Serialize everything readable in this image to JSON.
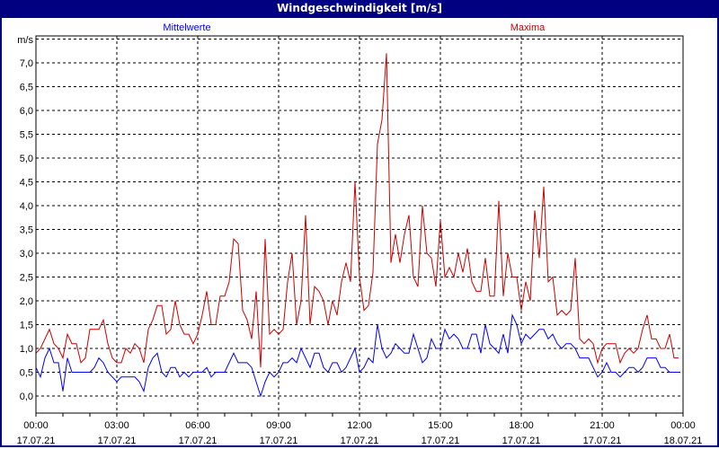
{
  "window": {
    "title": "Windgeschwindigkeit [m/s]"
  },
  "chart_data": {
    "type": "line",
    "title": "Windgeschwindigkeit [m/s]",
    "ylabel": "m/s",
    "ylim": [
      -0.36,
      7.5
    ],
    "xlim": [
      "17.07.21 00:00",
      "18.07.21 00:00"
    ],
    "grid": true,
    "legend_placement": "top",
    "y_ticks": [
      "0,0",
      "0,5",
      "1,0",
      "1,5",
      "2,0",
      "2,5",
      "3,0",
      "3,5",
      "4,0",
      "4,5",
      "5,0",
      "5,5",
      "6,0",
      "6,5",
      "7,0"
    ],
    "x_ticks": [
      {
        "time": "00:00",
        "date": "17.07.21"
      },
      {
        "time": "03:00",
        "date": "17.07.21"
      },
      {
        "time": "06:00",
        "date": "17.07.21"
      },
      {
        "time": "09:00",
        "date": "17.07.21"
      },
      {
        "time": "12:00",
        "date": "17.07.21"
      },
      {
        "time": "15:00",
        "date": "17.07.21"
      },
      {
        "time": "18:00",
        "date": "17.07.21"
      },
      {
        "time": "21:00",
        "date": "17.07.21"
      },
      {
        "time": "00:00",
        "date": "18.07.21"
      }
    ],
    "x": [
      "00:00",
      "00:10",
      "00:20",
      "00:30",
      "00:40",
      "00:50",
      "01:00",
      "01:10",
      "01:20",
      "01:30",
      "01:40",
      "01:50",
      "02:00",
      "02:10",
      "02:20",
      "02:30",
      "02:40",
      "02:50",
      "03:00",
      "03:10",
      "03:20",
      "03:30",
      "03:40",
      "03:50",
      "04:00",
      "04:10",
      "04:20",
      "04:30",
      "04:40",
      "04:50",
      "05:00",
      "05:10",
      "05:20",
      "05:30",
      "05:40",
      "05:50",
      "06:00",
      "06:10",
      "06:20",
      "06:30",
      "06:40",
      "06:50",
      "07:00",
      "07:10",
      "07:20",
      "07:30",
      "07:40",
      "07:50",
      "08:00",
      "08:10",
      "08:20",
      "08:30",
      "08:40",
      "08:50",
      "09:00",
      "09:10",
      "09:20",
      "09:30",
      "09:40",
      "09:50",
      "10:00",
      "10:10",
      "10:20",
      "10:30",
      "10:40",
      "10:50",
      "11:00",
      "11:10",
      "11:20",
      "11:30",
      "11:40",
      "11:50",
      "12:00",
      "12:10",
      "12:20",
      "12:30",
      "12:40",
      "12:50",
      "13:00",
      "13:10",
      "13:20",
      "13:30",
      "13:40",
      "13:50",
      "14:00",
      "14:10",
      "14:20",
      "14:30",
      "14:40",
      "14:50",
      "15:00",
      "15:10",
      "15:20",
      "15:30",
      "15:40",
      "15:50",
      "16:00",
      "16:10",
      "16:20",
      "16:30",
      "16:40",
      "16:50",
      "17:00",
      "17:10",
      "17:20",
      "17:30",
      "17:40",
      "17:50",
      "18:00",
      "18:10",
      "18:20",
      "18:30",
      "18:40",
      "18:50",
      "19:00",
      "19:10",
      "19:20",
      "19:30",
      "19:40",
      "19:50",
      "20:00",
      "20:10",
      "20:20",
      "20:30",
      "20:40",
      "20:50",
      "21:00",
      "21:10",
      "21:20",
      "21:30",
      "21:40",
      "21:50",
      "22:00",
      "22:10",
      "22:20",
      "22:30",
      "22:40",
      "22:50",
      "23:00",
      "23:10",
      "23:20",
      "23:30",
      "23:40",
      "23:50"
    ],
    "series": [
      {
        "name": "Mittelwerte",
        "color": "#0000ff",
        "values": [
          0.6,
          0.4,
          0.8,
          1.0,
          0.7,
          0.7,
          0.1,
          0.8,
          0.5,
          0.5,
          0.5,
          0.5,
          0.5,
          0.6,
          0.8,
          0.7,
          0.5,
          0.4,
          0.3,
          0.4,
          0.4,
          0.4,
          0.4,
          0.3,
          0.1,
          0.6,
          0.8,
          0.9,
          0.5,
          0.4,
          0.6,
          0.6,
          0.4,
          0.5,
          0.4,
          0.5,
          0.5,
          0.5,
          0.6,
          0.4,
          0.5,
          0.5,
          0.5,
          0.7,
          0.9,
          0.7,
          0.7,
          0.7,
          0.6,
          0.3,
          0.0,
          0.3,
          0.5,
          0.4,
          0.5,
          0.7,
          0.7,
          0.8,
          0.7,
          1.0,
          0.8,
          0.6,
          0.9,
          0.9,
          0.6,
          0.5,
          0.7,
          0.7,
          0.5,
          0.6,
          0.8,
          1.0,
          0.5,
          0.6,
          0.8,
          0.7,
          1.5,
          1.0,
          0.8,
          0.9,
          1.1,
          1.0,
          0.9,
          0.9,
          1.3,
          1.0,
          0.7,
          0.8,
          1.2,
          1.0,
          1.0,
          1.4,
          1.2,
          1.3,
          1.2,
          1.0,
          1.0,
          1.3,
          1.3,
          0.9,
          1.5,
          1.1,
          1.0,
          0.9,
          1.3,
          0.9,
          1.7,
          1.5,
          1.1,
          1.3,
          1.2,
          1.3,
          1.4,
          1.4,
          1.2,
          1.3,
          1.1,
          1.0,
          1.1,
          1.1,
          1.0,
          0.8,
          0.8,
          0.8,
          0.6,
          0.4,
          0.5,
          0.7,
          0.5,
          0.5,
          0.4,
          0.5,
          0.6,
          0.6,
          0.5,
          0.6,
          0.8,
          0.8,
          0.8,
          0.6,
          0.6,
          0.5,
          0.5,
          0.5
        ]
      },
      {
        "name": "Maxima",
        "color": "#cc0000",
        "values": [
          0.9,
          1.0,
          1.2,
          1.4,
          1.1,
          1.0,
          0.8,
          1.3,
          1.1,
          1.1,
          0.7,
          0.8,
          1.4,
          1.4,
          1.4,
          1.6,
          1.1,
          0.8,
          0.7,
          0.7,
          1.0,
          0.9,
          1.1,
          1.0,
          0.7,
          1.4,
          1.6,
          1.9,
          1.9,
          1.3,
          1.4,
          2.0,
          1.5,
          1.3,
          1.3,
          1.1,
          1.3,
          1.7,
          2.2,
          1.5,
          1.5,
          2.1,
          2.1,
          2.4,
          3.3,
          3.2,
          1.8,
          1.6,
          1.2,
          2.2,
          0.6,
          3.3,
          1.3,
          1.4,
          1.3,
          1.4,
          2.4,
          3.0,
          1.5,
          2.0,
          3.8,
          1.5,
          2.3,
          2.2,
          2.0,
          1.5,
          2.0,
          1.7,
          2.4,
          2.8,
          2.4,
          4.5,
          2.5,
          1.8,
          1.9,
          2.6,
          5.3,
          5.8,
          7.2,
          2.8,
          3.4,
          2.8,
          3.4,
          3.8,
          2.5,
          2.3,
          4.0,
          3.0,
          2.9,
          2.3,
          3.7,
          2.5,
          2.7,
          2.5,
          3.0,
          2.6,
          3.1,
          2.4,
          2.2,
          2.2,
          2.9,
          2.1,
          2.1,
          4.1,
          2.1,
          3.0,
          2.5,
          2.5,
          1.8,
          2.4,
          2.0,
          3.9,
          2.9,
          4.4,
          2.4,
          2.5,
          1.7,
          1.8,
          1.7,
          1.8,
          2.9,
          1.2,
          1.1,
          1.2,
          1.1,
          0.7,
          1.0,
          1.1,
          1.1,
          1.1,
          0.7,
          0.9,
          1.0,
          0.9,
          1.0,
          1.4,
          1.7,
          1.2,
          1.2,
          1.0,
          1.0,
          1.3,
          0.8,
          0.8
        ]
      }
    ]
  }
}
